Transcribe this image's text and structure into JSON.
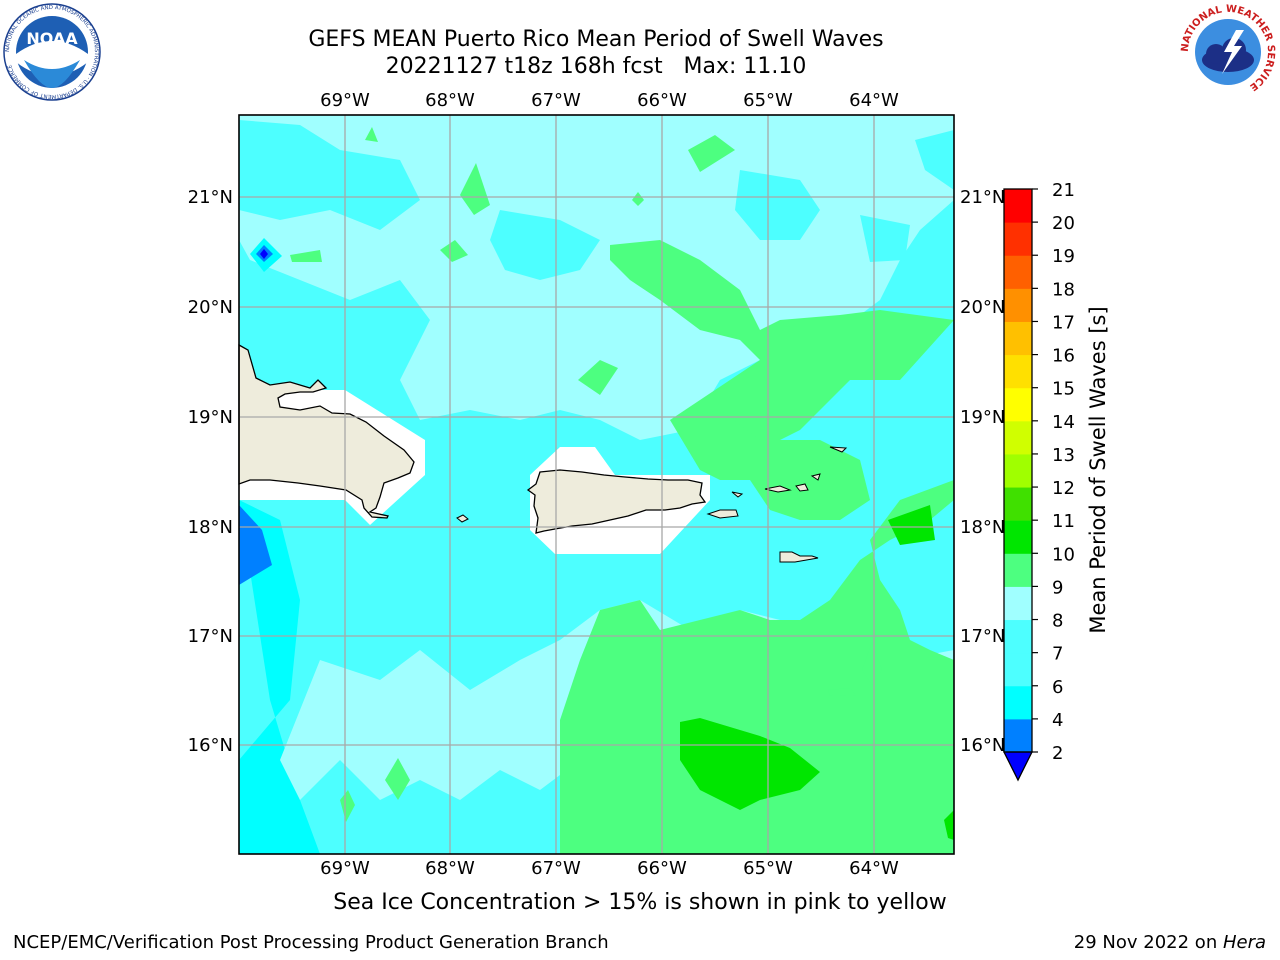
{
  "title_line1": "GEFS MEAN Puerto Rico Mean Period of Swell Waves",
  "title_line2": "20221127 t18z 168h fcst   Max: 11.10",
  "longitude_labels": [
    "69°W",
    "68°W",
    "67°W",
    "66°W",
    "65°W",
    "64°W"
  ],
  "latitude_labels": [
    "21°N",
    "20°N",
    "19°N",
    "18°N",
    "17°N",
    "16°N"
  ],
  "colorbar": {
    "label": "Mean Period of Swell Waves [s]",
    "ticks": [
      "2",
      "4",
      "6",
      "7",
      "8",
      "9",
      "10",
      "11",
      "12",
      "13",
      "14",
      "15",
      "16",
      "17",
      "18",
      "19",
      "20",
      "21"
    ],
    "colors": {
      "under": "#0000ff",
      "2-4": "#0080ff",
      "4-6": "#00ffff",
      "6-8": "#4dffff",
      "8-9": "#a0ffff",
      "9-10": "#4dff80",
      "10-11": "#00e600",
      "11-12": "#40e000",
      "12-13": "#a0ff00",
      "13-14": "#d0ff00",
      "14-15": "#ffff00",
      "15-16": "#ffe000",
      "16-17": "#ffc000",
      "17-18": "#ff9000",
      "18-19": "#ff6000",
      "19-20": "#ff3000",
      "20-21": "#ff0000"
    }
  },
  "logos": {
    "noaa_text": "NOAA",
    "noaa_ring_text": "NATIONAL OCEANIC AND ATMOSPHERIC ADMINISTRATION · U.S. DEPARTMENT OF COMMERCE",
    "nws_ring_text": "NATIONAL WEATHER SERVICE"
  },
  "note": "Sea Ice Concentration > 15% is shown in pink to yellow",
  "footer_left": "NCEP/EMC/Verification Post Processing Product Generation Branch",
  "footer_date": "29 Nov 2022 on ",
  "footer_machine": "Hera"
}
